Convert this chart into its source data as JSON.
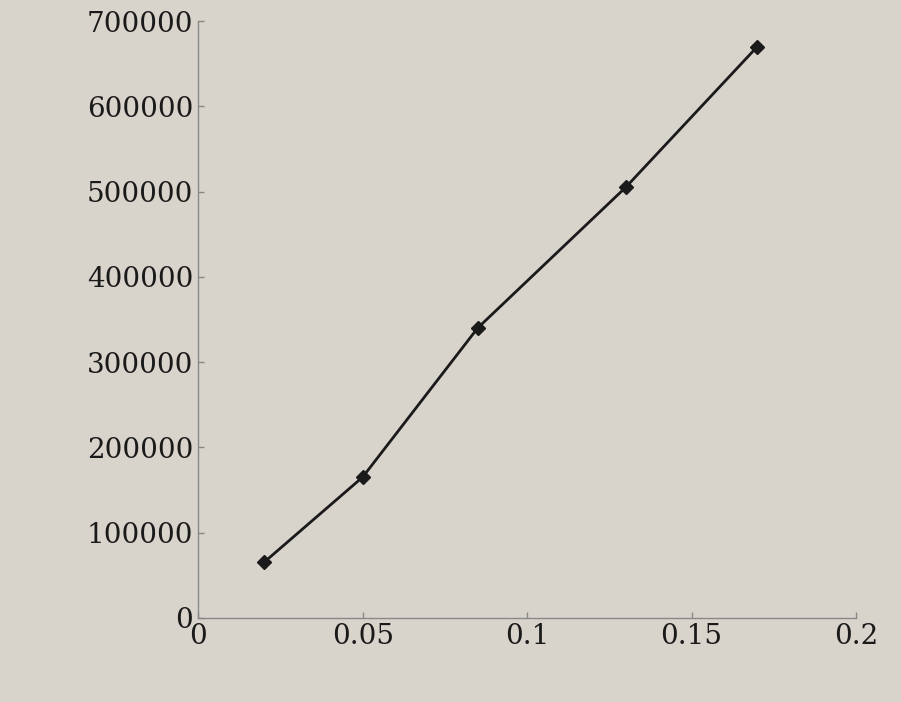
{
  "x": [
    0.02,
    0.05,
    0.085,
    0.13,
    0.17
  ],
  "y": [
    65000,
    165000,
    340000,
    505000,
    670000
  ],
  "line_color": "#1a1a1a",
  "marker": "D",
  "marker_size": 7,
  "marker_color": "#1a1a1a",
  "line_width": 2.0,
  "xlim": [
    0,
    0.2
  ],
  "ylim": [
    0,
    700000
  ],
  "xticks": [
    0,
    0.05,
    0.1,
    0.15,
    0.2
  ],
  "yticks": [
    0,
    100000,
    200000,
    300000,
    400000,
    500000,
    600000,
    700000
  ],
  "xtick_labels": [
    "0",
    "0.05",
    "0.1",
    "0.15",
    "0.2"
  ],
  "ytick_labels": [
    "0",
    "100000",
    "200000",
    "300000",
    "400000",
    "500000",
    "600000",
    "700000"
  ],
  "background_color": "#d8d4cc",
  "tick_fontsize": 20,
  "spine_color": "#888888"
}
